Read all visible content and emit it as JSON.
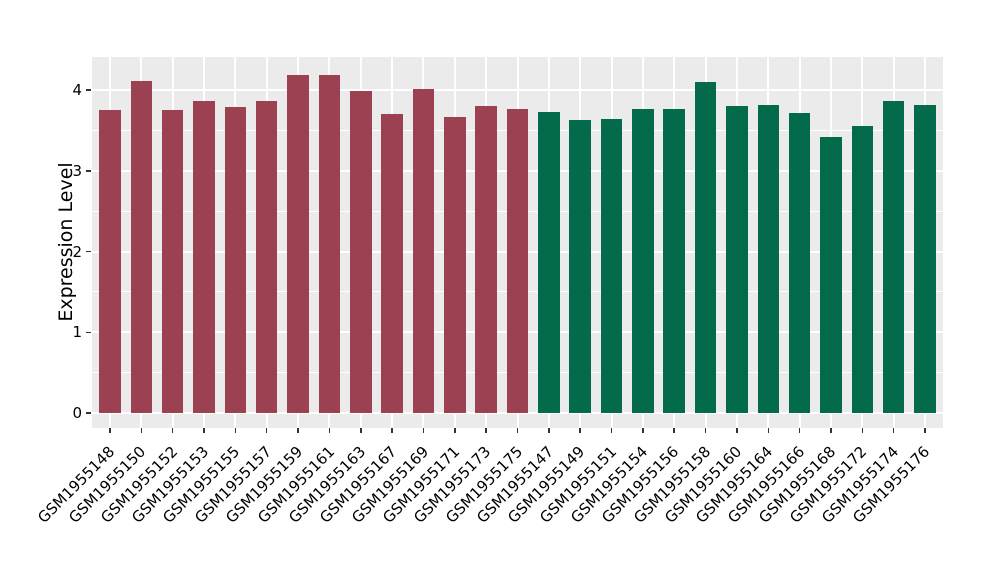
{
  "chart_data": {
    "type": "bar",
    "title": "",
    "xlabel": "",
    "ylabel": "Expression Level",
    "categories": [
      "GSM1955148",
      "GSM1955150",
      "GSM1955152",
      "GSM1955153",
      "GSM1955155",
      "GSM1955157",
      "GSM1955159",
      "GSM1955161",
      "GSM1955163",
      "GSM1955167",
      "GSM1955169",
      "GSM1955171",
      "GSM1955173",
      "GSM1955175",
      "GSM1955147",
      "GSM1955149",
      "GSM1955151",
      "GSM1955154",
      "GSM1955156",
      "GSM1955158",
      "GSM1955160",
      "GSM1955164",
      "GSM1955166",
      "GSM1955168",
      "GSM1955172",
      "GSM1955174",
      "GSM1955176"
    ],
    "values": [
      3.75,
      4.11,
      3.75,
      3.87,
      3.79,
      3.86,
      4.19,
      4.18,
      3.99,
      3.7,
      4.01,
      3.66,
      3.8,
      3.77,
      3.73,
      3.63,
      3.64,
      3.77,
      3.77,
      4.1,
      3.8,
      3.82,
      3.72,
      3.42,
      3.55,
      3.86,
      3.82
    ],
    "groups": [
      "red",
      "red",
      "red",
      "red",
      "red",
      "red",
      "red",
      "red",
      "red",
      "red",
      "red",
      "red",
      "red",
      "red",
      "green",
      "green",
      "green",
      "green",
      "green",
      "green",
      "green",
      "green",
      "green",
      "green",
      "green",
      "green",
      "green"
    ],
    "group_colors": {
      "red": "#9C4151",
      "green": "#036B4B"
    },
    "y_ticks": [
      "0",
      "1",
      "2",
      "3",
      "4"
    ],
    "y_minor_ticks": [
      0.5,
      1.5,
      2.5,
      3.5
    ],
    "ylim": [
      -0.19,
      4.41
    ],
    "grid": true,
    "legend": "none",
    "colors": {
      "panel_background": "#EBEBEB",
      "grid": "#FFFFFF",
      "text": "#000000",
      "tick": "#333333",
      "page_background": "#FFFFFF"
    }
  }
}
